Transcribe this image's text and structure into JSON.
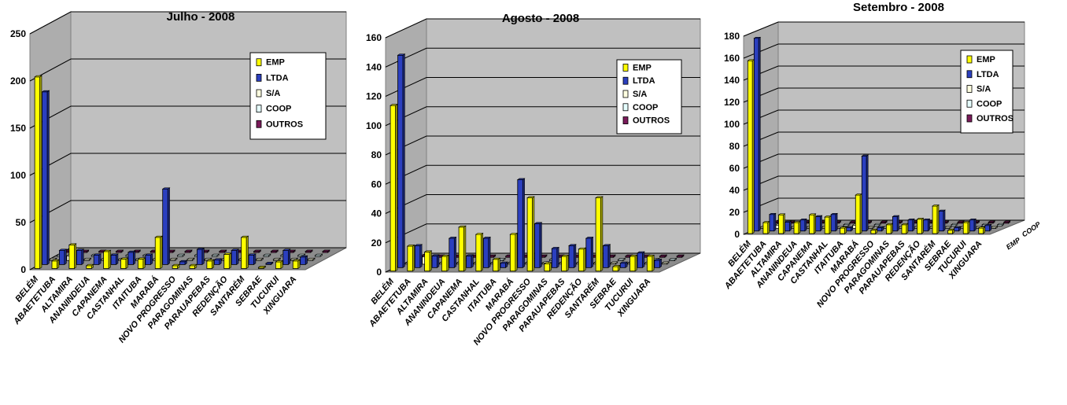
{
  "colors": {
    "EMP": "#ffff00",
    "LTDA": "#2b3fbf",
    "S/A": "#ffffe0",
    "COOP": "#e6ffff",
    "OUTROS": "#7a1a5a",
    "wall": "#c0c0c0",
    "floor": "#8c8c8c"
  },
  "chart_data": [
    {
      "type": "bar",
      "title": "Julho - 2008",
      "ylim": [
        0,
        250
      ],
      "yticks": [
        0,
        50,
        100,
        150,
        200,
        250
      ],
      "legend_position": "top-right",
      "categories": [
        "BELÉM",
        "ABAETETUBA",
        "ALTAMIRA",
        "ANANINDEUA",
        "CAPANEMA",
        "CASTANHAL",
        "ITAITUBA",
        "MARABÁ",
        "NOVO PROGRESSO",
        "PARAGOMINAS",
        "PARAUAPEBAS",
        "REDENÇÃO",
        "SANTARÉM",
        "SEBRAE",
        "TUCURUI",
        "XINGUARA"
      ],
      "series": [
        {
          "name": "EMP",
          "values": [
            203,
            8,
            25,
            3,
            18,
            10,
            10,
            33,
            3,
            3,
            8,
            15,
            33,
            0,
            7,
            8
          ]
        },
        {
          "name": "LTDA",
          "values": [
            183,
            15,
            15,
            10,
            10,
            13,
            10,
            80,
            3,
            16,
            5,
            15,
            10,
            0,
            15,
            8
          ]
        },
        {
          "name": "S/A",
          "values": [
            0,
            5,
            1,
            0,
            0,
            0,
            0,
            0,
            0,
            0,
            0,
            0,
            0,
            0,
            0,
            0
          ]
        },
        {
          "name": "COOP",
          "values": [
            0,
            3,
            0,
            0,
            0,
            0,
            0,
            0,
            0,
            0,
            0,
            0,
            0,
            0,
            0,
            0
          ]
        },
        {
          "name": "OUTROS",
          "values": [
            0,
            0,
            0,
            0,
            0,
            0,
            0,
            0,
            0,
            0,
            0,
            0,
            0,
            0,
            0,
            0
          ]
        }
      ]
    },
    {
      "type": "bar",
      "title": "Agosto - 2008",
      "ylim": [
        0,
        160
      ],
      "yticks": [
        0,
        20,
        40,
        60,
        80,
        100,
        120,
        140,
        160
      ],
      "legend_position": "top-right",
      "categories": [
        "BELÉM",
        "ABAETETUBA",
        "ALTAMIRA",
        "ANANINDEUA",
        "CAPANEMA",
        "CASTANHAL",
        "ITAITUBA",
        "MARABÁ",
        "NOVO PROGRESSO",
        "PARAGOMINAS",
        "PARAUAPEBAS",
        "REDENÇÃO",
        "SANTARÉM",
        "SEBRAE",
        "TUCURUI",
        "XINGUARA"
      ],
      "series": [
        {
          "name": "EMP",
          "values": [
            113,
            17,
            13,
            10,
            30,
            25,
            8,
            25,
            50,
            5,
            10,
            15,
            50,
            3,
            10,
            10
          ]
        },
        {
          "name": "LTDA",
          "values": [
            145,
            15,
            8,
            20,
            8,
            20,
            3,
            60,
            30,
            13,
            15,
            20,
            15,
            3,
            10,
            5
          ]
        },
        {
          "name": "S/A",
          "values": [
            0,
            5,
            0,
            0,
            0,
            0,
            0,
            0,
            0,
            0,
            0,
            0,
            0,
            0,
            0,
            0
          ]
        },
        {
          "name": "COOP",
          "values": [
            0,
            0,
            0,
            0,
            0,
            0,
            0,
            0,
            0,
            0,
            0,
            0,
            0,
            0,
            0,
            0
          ]
        },
        {
          "name": "OUTROS",
          "values": [
            0,
            0,
            0,
            0,
            0,
            0,
            0,
            0,
            0,
            0,
            0,
            0,
            0,
            0,
            0,
            0
          ]
        }
      ]
    },
    {
      "type": "bar",
      "title": "Setembro - 2008",
      "ylim": [
        0,
        180
      ],
      "yticks": [
        0,
        20,
        40,
        60,
        80,
        100,
        120,
        140,
        160,
        180
      ],
      "legend_position": "top-right",
      "depth_labels": [
        "EMP",
        "COOP"
      ],
      "categories": [
        "BELÉM",
        "ABAETETUBA",
        "ALTAMIRA",
        "ANANINDEUA",
        "CAPANEMA",
        "CASTANHAL",
        "ITAITUBA",
        "MARABÁ",
        "NOVO PROGRESSO",
        "PARAGOMINAS",
        "PARAUAPEBAS",
        "REDENÇÃO",
        "SANTARÉM",
        "SEBRAE",
        "TUCURUI",
        "XINGUARA"
      ],
      "series": [
        {
          "name": "EMP",
          "values": [
            157,
            10,
            17,
            10,
            17,
            15,
            5,
            35,
            3,
            8,
            8,
            13,
            25,
            3,
            10,
            5
          ]
        },
        {
          "name": "LTDA",
          "values": [
            175,
            15,
            8,
            10,
            13,
            15,
            3,
            68,
            3,
            13,
            10,
            10,
            18,
            3,
            10,
            5
          ]
        },
        {
          "name": "S/A",
          "values": [
            0,
            3,
            0,
            0,
            0,
            0,
            3,
            0,
            0,
            0,
            0,
            0,
            0,
            0,
            0,
            0
          ]
        },
        {
          "name": "COOP",
          "values": [
            0,
            0,
            0,
            0,
            0,
            0,
            3,
            0,
            0,
            0,
            0,
            0,
            0,
            0,
            0,
            0
          ]
        },
        {
          "name": "OUTROS",
          "values": [
            0,
            0,
            0,
            0,
            0,
            0,
            0,
            0,
            0,
            0,
            0,
            0,
            0,
            0,
            0,
            0
          ]
        }
      ]
    }
  ]
}
